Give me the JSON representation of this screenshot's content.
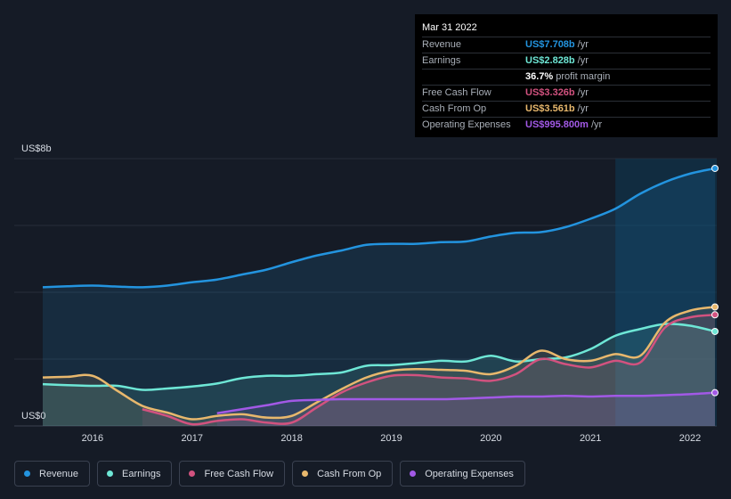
{
  "tooltip": {
    "date": "Mar 31 2022",
    "rows": [
      {
        "label": "Revenue",
        "value": "US$7.708b",
        "unit": "/yr",
        "color": "#2394df"
      },
      {
        "label": "Earnings",
        "value": "US$2.828b",
        "unit": "/yr",
        "color": "#6ee7d6"
      },
      {
        "label": "",
        "value": "36.7%",
        "unit": "profit margin",
        "color": "#ffffff"
      },
      {
        "label": "Free Cash Flow",
        "value": "US$3.326b",
        "unit": "/yr",
        "color": "#d2527f"
      },
      {
        "label": "Cash From Op",
        "value": "US$3.561b",
        "unit": "/yr",
        "color": "#e8b86d"
      },
      {
        "label": "Operating Expenses",
        "value": "US$995.800m",
        "unit": "/yr",
        "color": "#a259e6"
      }
    ]
  },
  "legend": [
    {
      "label": "Revenue",
      "color": "#2394df"
    },
    {
      "label": "Earnings",
      "color": "#6ee7d6"
    },
    {
      "label": "Free Cash Flow",
      "color": "#d2527f"
    },
    {
      "label": "Cash From Op",
      "color": "#e8b86d"
    },
    {
      "label": "Operating Expenses",
      "color": "#a259e6"
    }
  ],
  "chart_data": {
    "type": "line",
    "title": "",
    "xlabel": "",
    "ylabel": "",
    "y_top_label": "US$8b",
    "y_bottom_label": "US$0",
    "ylim": [
      0,
      8
    ],
    "xlim": [
      2015.5,
      2022.25
    ],
    "x_ticks": [
      "2016",
      "2017",
      "2018",
      "2019",
      "2020",
      "2021",
      "2022"
    ],
    "x_tick_values": [
      2016,
      2017,
      2018,
      2019,
      2020,
      2021,
      2022
    ],
    "grid": true,
    "legend_placement": "bottom",
    "highlight_from": 2021.25,
    "series": [
      {
        "name": "Revenue",
        "color": "#2394df",
        "values_x": [
          2015.5,
          2015.75,
          2016.0,
          2016.25,
          2016.5,
          2016.75,
          2017.0,
          2017.25,
          2017.5,
          2017.75,
          2018.0,
          2018.25,
          2018.5,
          2018.75,
          2019.0,
          2019.25,
          2019.5,
          2019.75,
          2020.0,
          2020.25,
          2020.5,
          2020.75,
          2021.0,
          2021.25,
          2021.5,
          2021.75,
          2022.0,
          2022.25
        ],
        "values_y": [
          4.15,
          4.18,
          4.2,
          4.17,
          4.15,
          4.2,
          4.3,
          4.38,
          4.53,
          4.68,
          4.9,
          5.1,
          5.25,
          5.42,
          5.45,
          5.45,
          5.5,
          5.52,
          5.67,
          5.78,
          5.8,
          5.95,
          6.2,
          6.5,
          6.95,
          7.3,
          7.55,
          7.708
        ]
      },
      {
        "name": "Earnings",
        "color": "#6ee7d6",
        "values_x": [
          2015.5,
          2015.75,
          2016.0,
          2016.25,
          2016.5,
          2016.75,
          2017.0,
          2017.25,
          2017.5,
          2017.75,
          2018.0,
          2018.25,
          2018.5,
          2018.75,
          2019.0,
          2019.25,
          2019.5,
          2019.75,
          2020.0,
          2020.25,
          2020.5,
          2020.75,
          2021.0,
          2021.25,
          2021.5,
          2021.75,
          2022.0,
          2022.25
        ],
        "values_y": [
          1.25,
          1.22,
          1.2,
          1.2,
          1.08,
          1.12,
          1.18,
          1.27,
          1.43,
          1.5,
          1.5,
          1.55,
          1.6,
          1.8,
          1.82,
          1.88,
          1.95,
          1.93,
          2.1,
          1.93,
          2.0,
          2.05,
          2.3,
          2.7,
          2.9,
          3.05,
          3.0,
          2.828
        ]
      },
      {
        "name": "Free Cash Flow",
        "color": "#d2527f",
        "values_x": [
          2015.5,
          2015.75,
          2016.0,
          2016.25,
          2016.5,
          2016.75,
          2017.0,
          2017.25,
          2017.5,
          2017.75,
          2018.0,
          2018.25,
          2018.5,
          2018.75,
          2019.0,
          2019.25,
          2019.5,
          2019.75,
          2020.0,
          2020.25,
          2020.5,
          2020.75,
          2021.0,
          2021.25,
          2021.5,
          2021.75,
          2022.0,
          2022.25
        ],
        "values_y": [
          null,
          null,
          null,
          null,
          0.5,
          0.3,
          0.05,
          0.15,
          0.2,
          0.1,
          0.1,
          0.55,
          1.0,
          1.3,
          1.5,
          1.52,
          1.45,
          1.42,
          1.35,
          1.55,
          2.0,
          1.85,
          1.75,
          1.95,
          1.9,
          2.95,
          3.25,
          3.326
        ]
      },
      {
        "name": "Cash From Op",
        "color": "#e8b86d",
        "values_x": [
          2015.5,
          2015.75,
          2016.0,
          2016.25,
          2016.5,
          2016.75,
          2017.0,
          2017.25,
          2017.5,
          2017.75,
          2018.0,
          2018.25,
          2018.5,
          2018.75,
          2019.0,
          2019.25,
          2019.5,
          2019.75,
          2020.0,
          2020.25,
          2020.5,
          2020.75,
          2021.0,
          2021.25,
          2021.5,
          2021.75,
          2022.0,
          2022.25
        ],
        "values_y": [
          1.45,
          1.47,
          1.5,
          1.05,
          0.6,
          0.4,
          0.2,
          0.3,
          0.35,
          0.25,
          0.3,
          0.7,
          1.1,
          1.45,
          1.65,
          1.7,
          1.68,
          1.65,
          1.55,
          1.8,
          2.25,
          2.0,
          1.95,
          2.15,
          2.1,
          3.1,
          3.45,
          3.561
        ]
      },
      {
        "name": "Operating Expenses",
        "color": "#a259e6",
        "values_x": [
          2017.25,
          2017.5,
          2017.75,
          2018.0,
          2018.25,
          2018.5,
          2018.75,
          2019.0,
          2019.25,
          2019.5,
          2019.75,
          2020.0,
          2020.25,
          2020.5,
          2020.75,
          2021.0,
          2021.25,
          2021.5,
          2021.75,
          2022.0,
          2022.25
        ],
        "values_y": [
          0.38,
          0.5,
          0.62,
          0.75,
          0.78,
          0.8,
          0.8,
          0.8,
          0.8,
          0.8,
          0.82,
          0.85,
          0.88,
          0.88,
          0.9,
          0.88,
          0.9,
          0.9,
          0.92,
          0.95,
          0.9958
        ]
      }
    ]
  }
}
